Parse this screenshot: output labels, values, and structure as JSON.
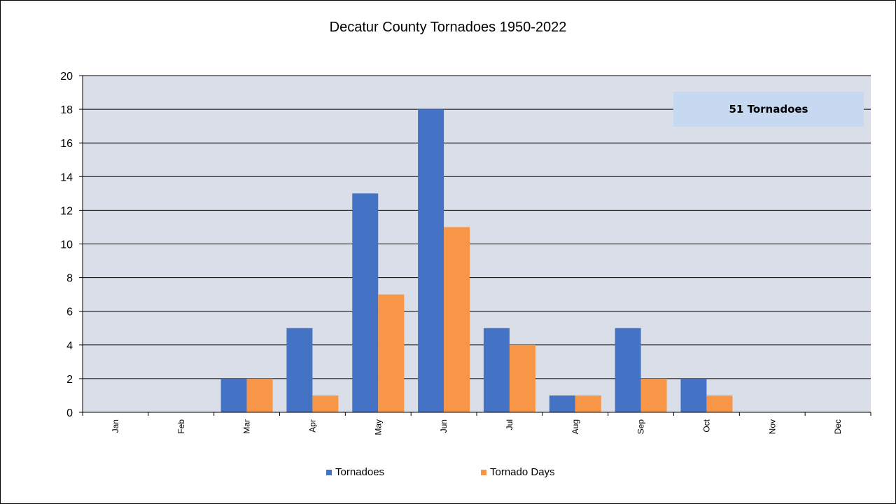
{
  "chart_data": {
    "type": "bar",
    "title": "Decatur County Tornadoes 1950-2022",
    "xlabel": "",
    "ylabel": "",
    "categories": [
      "Jan",
      "Feb",
      "Mar",
      "Apr",
      "May",
      "Jun",
      "Jul",
      "Aug",
      "Sep",
      "Oct",
      "Nov",
      "Dec"
    ],
    "series": [
      {
        "name": "Tornadoes",
        "color": "#4472c4",
        "values": [
          0,
          0,
          2,
          5,
          13,
          18,
          5,
          1,
          5,
          2,
          0,
          0
        ]
      },
      {
        "name": "Tornado Days",
        "color": "#f79646",
        "values": [
          0,
          0,
          2,
          1,
          7,
          11,
          4,
          1,
          2,
          1,
          0,
          0
        ]
      }
    ],
    "ylim": [
      0,
      20
    ],
    "yticks": [
      0,
      2,
      4,
      6,
      8,
      10,
      12,
      14,
      16,
      18,
      20
    ],
    "grid": true,
    "plot_background": "#d9dee8",
    "legend_position": "bottom",
    "annotation": "51 Tornadoes",
    "annotation_color": "#c6d9f1"
  }
}
